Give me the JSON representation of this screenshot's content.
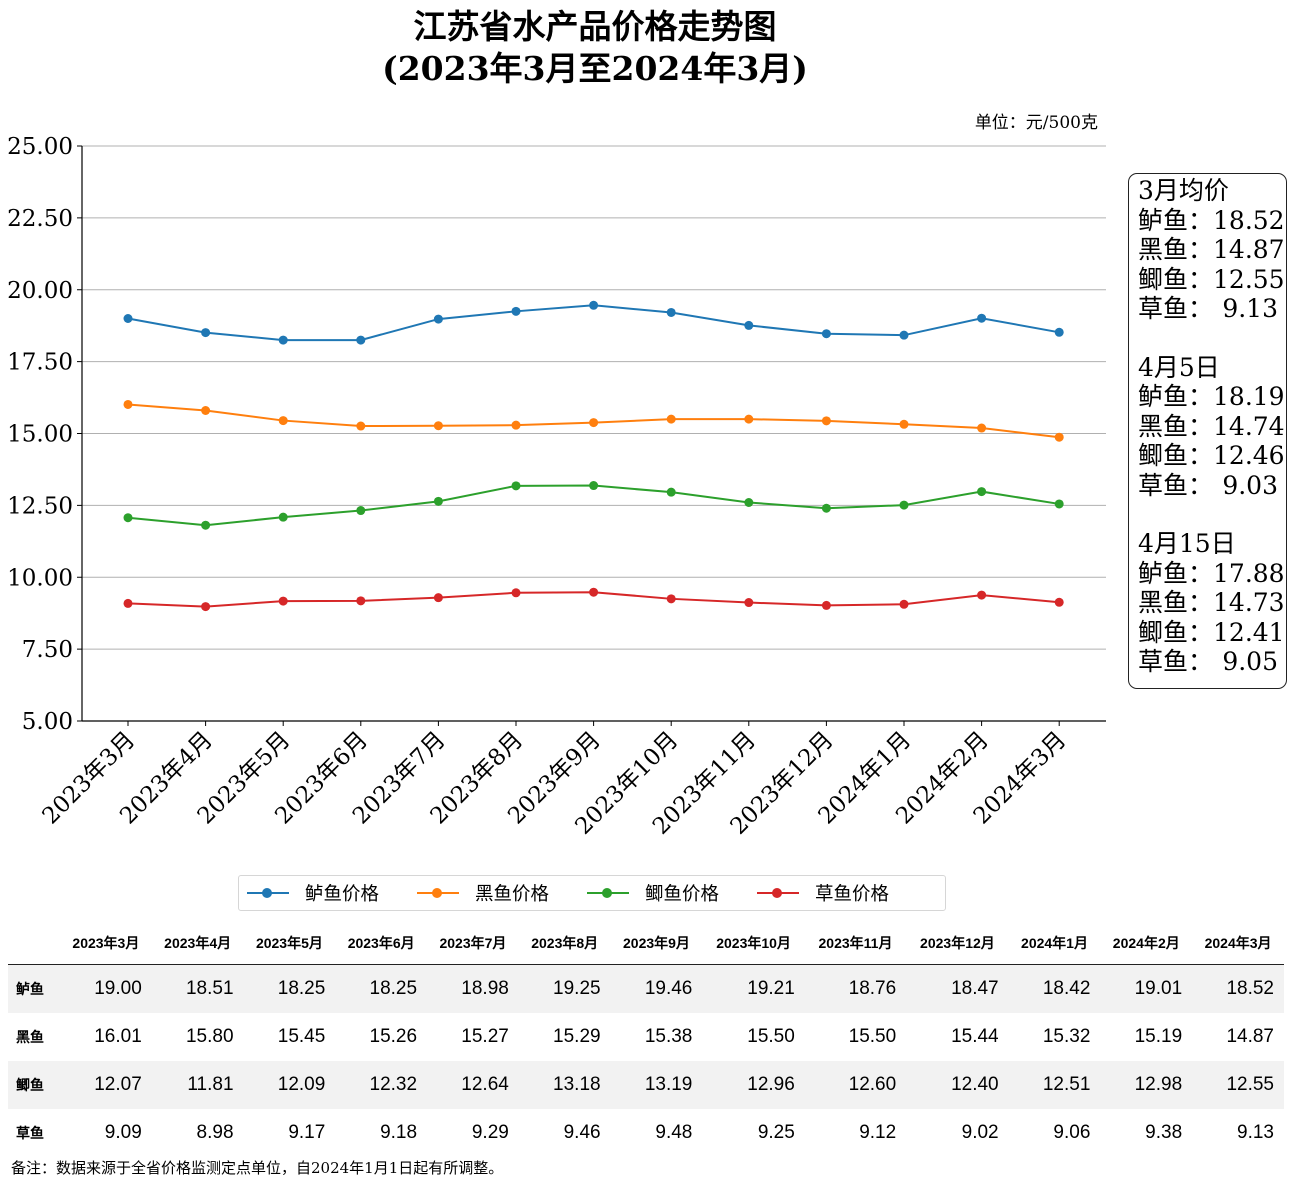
{
  "title_line1": "江苏省水产品价格走势图",
  "title_line2": "(2023年3月至2024年3月)",
  "unit_label": "单位：元/500克",
  "chart_data": {
    "type": "line",
    "categories": [
      "2023年3月",
      "2023年4月",
      "2023年5月",
      "2023年6月",
      "2023年7月",
      "2023年8月",
      "2023年9月",
      "2023年10月",
      "2023年11月",
      "2023年12月",
      "2024年1月",
      "2024年2月",
      "2024年3月"
    ],
    "series": [
      {
        "name": "鲈鱼价格",
        "color": "#1f77b4",
        "values": [
          19.0,
          18.51,
          18.25,
          18.25,
          18.98,
          19.25,
          19.46,
          19.21,
          18.76,
          18.47,
          18.42,
          19.01,
          18.52
        ]
      },
      {
        "name": "黑鱼价格",
        "color": "#ff7f0e",
        "values": [
          16.01,
          15.8,
          15.45,
          15.26,
          15.27,
          15.29,
          15.38,
          15.5,
          15.5,
          15.44,
          15.32,
          15.19,
          14.87
        ]
      },
      {
        "name": "鲫鱼价格",
        "color": "#2ca02c",
        "values": [
          12.07,
          11.81,
          12.09,
          12.32,
          12.64,
          13.18,
          13.19,
          12.96,
          12.6,
          12.4,
          12.51,
          12.98,
          12.55
        ]
      },
      {
        "name": "草鱼价格",
        "color": "#d62728",
        "values": [
          9.09,
          8.98,
          9.17,
          9.18,
          9.29,
          9.46,
          9.48,
          9.25,
          9.12,
          9.02,
          9.06,
          9.38,
          9.13
        ]
      }
    ],
    "ylim": [
      5,
      25
    ],
    "yticks": [
      "5.00",
      "7.50",
      "10.00",
      "12.50",
      "15.00",
      "17.50",
      "20.00",
      "22.50",
      "25.00"
    ],
    "grid": "horizontal",
    "legend_position": "bottom"
  },
  "side_box": {
    "groups": [
      {
        "heading": "3月均价",
        "rows": [
          {
            "name": "鲈鱼：",
            "value": "18.52"
          },
          {
            "name": "黑鱼：",
            "value": "14.87"
          },
          {
            "name": "鲫鱼：",
            "value": "12.55"
          },
          {
            "name": "草鱼：",
            "value": "9.13"
          }
        ]
      },
      {
        "heading": "4月5日",
        "rows": [
          {
            "name": "鲈鱼：",
            "value": "18.19"
          },
          {
            "name": "黑鱼：",
            "value": "14.74"
          },
          {
            "name": "鲫鱼：",
            "value": "12.46"
          },
          {
            "name": "草鱼：",
            "value": "9.03"
          }
        ]
      },
      {
        "heading": "4月15日",
        "rows": [
          {
            "name": "鲈鱼：",
            "value": "17.88"
          },
          {
            "name": "黑鱼：",
            "value": "14.73"
          },
          {
            "name": "鲫鱼：",
            "value": "12.41"
          },
          {
            "name": "草鱼：",
            "value": "9.05"
          }
        ]
      }
    ]
  },
  "table": {
    "headers": [
      "2023年3月",
      "2023年4月",
      "2023年5月",
      "2023年6月",
      "2023年7月",
      "2023年8月",
      "2023年9月",
      "2023年10月",
      "2023年11月",
      "2023年12月",
      "2024年1月",
      "2024年2月",
      "2024年3月"
    ],
    "rows": [
      {
        "name": "鲈鱼",
        "cells": [
          "19.00",
          "18.51",
          "18.25",
          "18.25",
          "18.98",
          "19.25",
          "19.46",
          "19.21",
          "18.76",
          "18.47",
          "18.42",
          "19.01",
          "18.52"
        ]
      },
      {
        "name": "黑鱼",
        "cells": [
          "16.01",
          "15.80",
          "15.45",
          "15.26",
          "15.27",
          "15.29",
          "15.38",
          "15.50",
          "15.50",
          "15.44",
          "15.32",
          "15.19",
          "14.87"
        ]
      },
      {
        "name": "鲫鱼",
        "cells": [
          "12.07",
          "11.81",
          "12.09",
          "12.32",
          "12.64",
          "13.18",
          "13.19",
          "12.96",
          "12.60",
          "12.40",
          "12.51",
          "12.98",
          "12.55"
        ]
      },
      {
        "name": "草鱼",
        "cells": [
          "9.09",
          "8.98",
          "9.17",
          "9.18",
          "9.29",
          "9.46",
          "9.48",
          "9.25",
          "9.12",
          "9.02",
          "9.06",
          "9.38",
          "9.13"
        ]
      }
    ]
  },
  "footnote": "备注：数据来源于全省价格监测定点单位，自2024年1月1日起有所调整。"
}
